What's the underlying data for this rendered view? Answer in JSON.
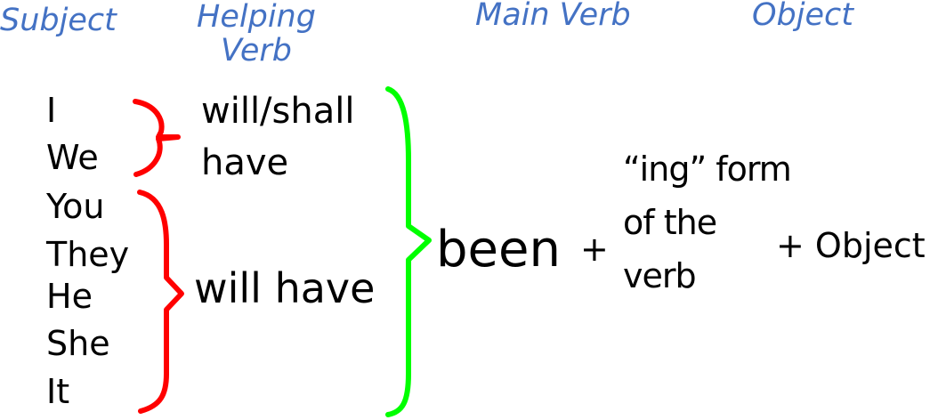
{
  "headers": {
    "subject": "Subject",
    "helping_verb_line1": "Helping",
    "helping_verb_line2": "Verb",
    "main_verb": "Main Verb",
    "object": "Object"
  },
  "subjects": [
    "I",
    "We",
    "You",
    "They",
    "He",
    "She",
    "It"
  ],
  "helping_verbs": {
    "first_person_line1": "will/shall",
    "first_person_line2": "have",
    "others": "will have"
  },
  "main_verb": {
    "been": "been",
    "plus": "+",
    "ing_line1": "“ing” form",
    "ing_line2": "of the",
    "ing_line3": "verb"
  },
  "object": {
    "text": "+ Object"
  },
  "colors": {
    "header": "#4472c4",
    "red_brace": "#ff0000",
    "green_brace": "#00ff00",
    "text": "#000000"
  }
}
